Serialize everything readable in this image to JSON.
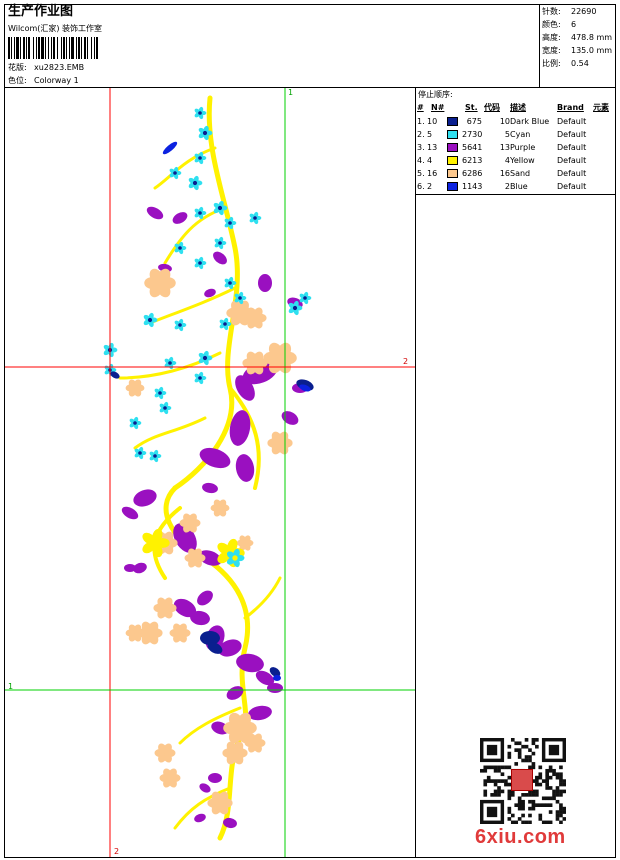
{
  "header": {
    "title": "生产作业图",
    "company": "Wilcom(汇家) 装饰工作室",
    "pattern_label": "花版:",
    "pattern_value": "xu2823.EMB",
    "color_label": "色位:",
    "color_value": "Colorway 1"
  },
  "stats": {
    "stitches_label": "针数:",
    "stitches_value": "22690",
    "colors_label": "颜色:",
    "colors_value": "6",
    "height_label": "高度:",
    "height_value": "478.8 mm",
    "width_label": "宽度:",
    "width_value": "135.0 mm",
    "scale_label": "比例:",
    "scale_value": "0.54"
  },
  "stop_sequence": {
    "title": "停止顺序:",
    "columns": [
      "#",
      "N#",
      "St.",
      "代码",
      "描述",
      "Brand",
      "元素"
    ],
    "rows": [
      {
        "idx": "1.",
        "n": "10",
        "st": "675",
        "code": "10",
        "desc": "Dark Blue",
        "brand": "Default",
        "color": "#0a1f8f"
      },
      {
        "idx": "2.",
        "n": "5",
        "st": "2730",
        "code": "5",
        "desc": "Cyan",
        "brand": "Default",
        "color": "#2fe0f0"
      },
      {
        "idx": "3.",
        "n": "13",
        "st": "5641",
        "code": "13",
        "desc": "Purple",
        "brand": "Default",
        "color": "#9a10c0"
      },
      {
        "idx": "4.",
        "n": "4",
        "st": "6213",
        "code": "4",
        "desc": "Yellow",
        "brand": "Default",
        "color": "#fff200"
      },
      {
        "idx": "5.",
        "n": "16",
        "st": "6286",
        "code": "16",
        "desc": "Sand",
        "brand": "Default",
        "color": "#fcc88e"
      },
      {
        "idx": "6.",
        "n": "2",
        "st": "1143",
        "code": "2",
        "desc": "Blue",
        "brand": "Default",
        "color": "#0c22e0"
      }
    ]
  },
  "guides": {
    "h1_label": "1",
    "h2_label": "2",
    "v1_label": "1",
    "v2_label": "2"
  },
  "watermark": {
    "site": "6xiu.com"
  }
}
